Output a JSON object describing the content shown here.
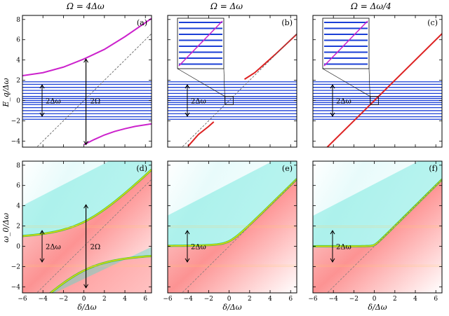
{
  "column_titles": [
    "Ω = 4Δω",
    "Ω = Δω",
    "Ω = Δω/4"
  ],
  "top_ylabel": "E_q/Δω",
  "bottom_ylabel": "ω_0/Δω",
  "xlabel": "δ/Δω",
  "annotations": {
    "two_delta_omega": "2Δω",
    "two_omega": "2Ω"
  },
  "colors": {
    "band_line": "#1a3fd6",
    "branch_magenta": "#cc22cc",
    "branch_red": "#dd2222",
    "cmap_low": "#40e0d0",
    "cmap_high": "#ff6a6a",
    "cmap_mid": "#ffd700"
  },
  "chart_data": [
    {
      "type": "line",
      "panel": "(a)",
      "row": "top",
      "title": "Ω = 4Δω",
      "xlim": [
        -6,
        6.6
      ],
      "ylim": [
        -4.6,
        8.4
      ],
      "xticks": [
        -6,
        -4,
        -2,
        0,
        2,
        4,
        6
      ],
      "yticks": [
        -4,
        -2,
        0,
        2,
        4,
        6,
        8
      ],
      "xlabel": "",
      "ylabel": "E_q/Δω",
      "omega": 4,
      "band_levels": [
        -1.85,
        -1.6,
        -1.3,
        -1.0,
        -0.7,
        -0.4,
        -0.2,
        0.0,
        0.2,
        0.4,
        0.7,
        1.0,
        1.3,
        1.6,
        1.85
      ],
      "series": [
        {
          "name": "upper polariton branch",
          "x": [
            -6,
            -4,
            -2,
            0,
            2,
            4,
            6.6
          ],
          "y": [
            2.45,
            2.75,
            3.3,
            4.1,
            5.05,
            6.3,
            8.1
          ]
        },
        {
          "name": "lower polariton branch",
          "x": [
            0,
            1,
            2,
            3,
            4,
            5,
            6.6
          ],
          "y": [
            -4.35,
            -3.85,
            -3.4,
            -3.05,
            -2.78,
            -2.55,
            -2.3
          ]
        },
        {
          "name": "bare cavity δ",
          "x": [
            -6,
            6.6
          ],
          "y": [
            -6,
            6.6
          ],
          "style": "dashed"
        }
      ]
    },
    {
      "type": "line",
      "panel": "(b)",
      "row": "top",
      "title": "Ω = Δω",
      "xlim": [
        -6,
        6.6
      ],
      "ylim": [
        -4.6,
        8.4
      ],
      "xticks": [
        -6,
        -4,
        -2,
        0,
        2,
        4,
        6
      ],
      "yticks": [
        -4,
        -2,
        0,
        2,
        4,
        6,
        8
      ],
      "omega": 1,
      "band_levels": [
        -1.85,
        -1.6,
        -1.3,
        -1.0,
        -0.7,
        -0.4,
        -0.2,
        0.0,
        0.2,
        0.4,
        0.7,
        1.0,
        1.3,
        1.6,
        1.85
      ],
      "series": [
        {
          "name": "upper branch",
          "x": [
            1.5,
            2.5,
            3.5,
            4.5,
            5.5,
            6.6
          ],
          "y": [
            2.1,
            2.75,
            3.65,
            4.55,
            5.5,
            6.55
          ]
        },
        {
          "name": "lower branch",
          "x": [
            -4.0,
            -3.0,
            -2.0,
            -1.5
          ],
          "y": [
            -4.5,
            -3.35,
            -2.55,
            -2.1
          ]
        },
        {
          "name": "bare cavity δ",
          "x": [
            -6,
            6.6
          ],
          "y": [
            -6,
            6.6
          ],
          "style": "dashed"
        }
      ]
    },
    {
      "type": "line",
      "panel": "(c)",
      "row": "top",
      "title": "Ω = Δω/4",
      "xlim": [
        -6,
        6.6
      ],
      "ylim": [
        -4.6,
        8.4
      ],
      "xticks": [
        -6,
        -4,
        -2,
        0,
        2,
        4,
        6
      ],
      "yticks": [
        -4,
        -2,
        0,
        2,
        4,
        6,
        8
      ],
      "omega": 0.25,
      "band_levels": [
        -1.85,
        -1.6,
        -1.3,
        -1.0,
        -0.7,
        -0.4,
        -0.2,
        0.0,
        0.2,
        0.4,
        0.7,
        1.0,
        1.3,
        1.6,
        1.85
      ],
      "series": [
        {
          "name": "cavity-like branch",
          "x": [
            -4.6,
            6.6
          ],
          "y": [
            -4.6,
            6.6
          ]
        }
      ]
    },
    {
      "type": "heatmap",
      "panel": "(d)",
      "row": "bottom",
      "xlim": [
        -6,
        6.6
      ],
      "ylim": [
        -4.6,
        8.4
      ],
      "xticks": [
        -6,
        -4,
        -2,
        0,
        2,
        4,
        6
      ],
      "yticks": [
        -4,
        -2,
        0,
        2,
        4,
        6,
        8
      ],
      "xlabel": "δ/Δω",
      "ylabel": "ω_0/Δω",
      "omega": 4
    },
    {
      "type": "heatmap",
      "panel": "(e)",
      "row": "bottom",
      "xlim": [
        -6,
        6.6
      ],
      "ylim": [
        -4.6,
        8.4
      ],
      "xticks": [
        -6,
        -4,
        -2,
        0,
        2,
        4,
        6
      ],
      "yticks": [
        -4,
        -2,
        0,
        2,
        4,
        6,
        8
      ],
      "xlabel": "δ/Δω",
      "omega": 1
    },
    {
      "type": "heatmap",
      "panel": "(f)",
      "row": "bottom",
      "xlim": [
        -6,
        6.6
      ],
      "ylim": [
        -4.6,
        8.4
      ],
      "xticks": [
        -6,
        -4,
        -2,
        0,
        2,
        4,
        6
      ],
      "yticks": [
        -4,
        -2,
        0,
        2,
        4,
        6,
        8
      ],
      "xlabel": "δ/Δω",
      "omega": 0.25
    }
  ]
}
